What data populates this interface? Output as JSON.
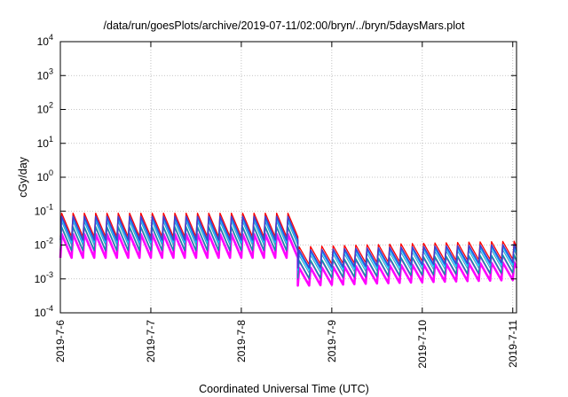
{
  "chart_data": {
    "type": "line",
    "title": "/data/run/goesPlots/archive/2019-07-11/02:00/bryn/../bryn/5daysMars.plot",
    "xlabel": "Coordinated Universal Time (UTC)",
    "ylabel": "cGy/day",
    "y_scale": "log",
    "ylim": [
      0.0001,
      10000
    ],
    "xlim": [
      "2019-07-06 00:00",
      "2019-07-11 01:00"
    ],
    "x_ticks": [
      "2019-7-6",
      "2019-7-7",
      "2019-7-8",
      "2019-7-9",
      "2019-7-10",
      "2019-7-11"
    ],
    "y_ticks": [
      {
        "value": 0.0001,
        "base": "10",
        "exp": "-4"
      },
      {
        "value": 0.001,
        "base": "10",
        "exp": "-3"
      },
      {
        "value": 0.01,
        "base": "10",
        "exp": "-2"
      },
      {
        "value": 0.1,
        "base": "10",
        "exp": "-1"
      },
      {
        "value": 1,
        "base": "10",
        "exp": "0"
      },
      {
        "value": 10,
        "base": "10",
        "exp": "1"
      },
      {
        "value": 100,
        "base": "10",
        "exp": "2"
      },
      {
        "value": 1000,
        "base": "10",
        "exp": "3"
      },
      {
        "value": 10000,
        "base": "10",
        "exp": "4"
      }
    ],
    "grid": true,
    "legend": "none",
    "sawtooth": {
      "cycle_hours": 3,
      "step_time": "2019-07-08 14:00",
      "peak_before_step": 0.07,
      "trough_ratio_before_step": 0.2,
      "peak_after_step": 0.007,
      "trough_ratio_after_step": 0.3,
      "late_rise_factor": 1.5
    },
    "series": [
      {
        "color": "#ff0000",
        "offset": 1.25,
        "width": 1.3
      },
      {
        "color": "#ff00ff",
        "offset": 0.3,
        "width": 2.6
      },
      {
        "color": "#c000e0",
        "offset": 0.45,
        "width": 1.0
      },
      {
        "color": "#00a0a0",
        "offset": 0.5,
        "width": 1.3
      },
      {
        "color": "#3c8cc8",
        "offset": 0.7,
        "width": 1.0
      },
      {
        "color": "#00c0ff",
        "offset": 0.85,
        "width": 1.3
      },
      {
        "color": "#4040d0",
        "offset": 1.0,
        "width": 1.6
      }
    ]
  }
}
